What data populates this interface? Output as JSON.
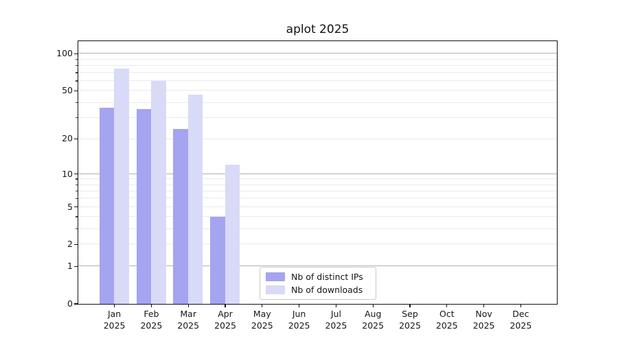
{
  "chart_data": {
    "type": "bar",
    "title": "aplot 2025",
    "categories": [
      "Jan",
      "Feb",
      "Mar",
      "Apr",
      "May",
      "Jun",
      "Jul",
      "Aug",
      "Sep",
      "Oct",
      "Nov",
      "Dec"
    ],
    "category_year": "2025",
    "series": [
      {
        "name": "Nb of distinct IPs",
        "color": "#a4a4f1",
        "values": [
          36,
          35,
          24,
          4,
          0,
          0,
          0,
          0,
          0,
          0,
          0,
          0
        ]
      },
      {
        "name": "Nb of downloads",
        "color": "#d9d9f8",
        "values": [
          75,
          60,
          46,
          12,
          0,
          0,
          0,
          0,
          0,
          0,
          0,
          0
        ]
      }
    ],
    "xlabel": "",
    "ylabel": "",
    "yscale": "log10(1+v)",
    "ylim": [
      0,
      126
    ],
    "yticks": [
      0,
      1,
      2,
      5,
      10,
      20,
      50,
      100
    ],
    "minor_yticks": [
      3,
      4,
      6,
      7,
      8,
      9,
      30,
      40,
      60,
      70,
      80,
      90
    ],
    "decade_yticks": [
      1,
      10,
      100
    ],
    "grid": "horizontal",
    "legend_position": "bottom-center",
    "colors": {
      "major_grid": "#b0b0b0",
      "minor_grid": "#e9e9f0",
      "axis": "#111111",
      "text": "#151515",
      "background": "#ffffff"
    }
  }
}
